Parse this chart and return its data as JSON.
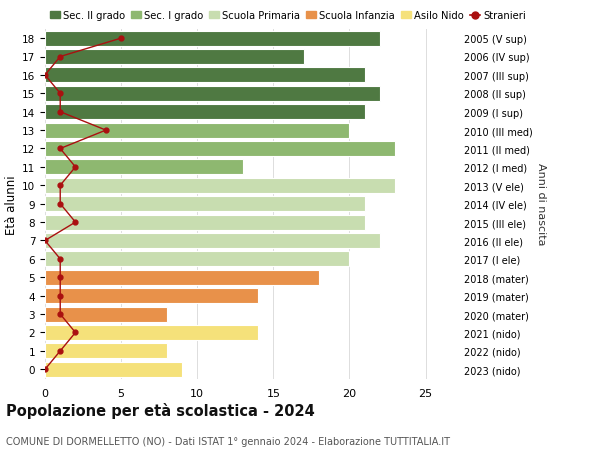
{
  "ages": [
    0,
    1,
    2,
    3,
    4,
    5,
    6,
    7,
    8,
    9,
    10,
    11,
    12,
    13,
    14,
    15,
    16,
    17,
    18
  ],
  "right_labels": [
    "2023 (nido)",
    "2022 (nido)",
    "2021 (nido)",
    "2020 (mater)",
    "2019 (mater)",
    "2018 (mater)",
    "2017 (I ele)",
    "2016 (II ele)",
    "2015 (III ele)",
    "2014 (IV ele)",
    "2013 (V ele)",
    "2012 (I med)",
    "2011 (II med)",
    "2010 (III med)",
    "2009 (I sup)",
    "2008 (II sup)",
    "2007 (III sup)",
    "2006 (IV sup)",
    "2005 (V sup)"
  ],
  "bar_values": [
    9,
    8,
    14,
    8,
    14,
    18,
    20,
    22,
    21,
    21,
    23,
    13,
    23,
    20,
    21,
    22,
    21,
    17,
    22
  ],
  "bar_colors": [
    "#f5e17a",
    "#f5e17a",
    "#f5e17a",
    "#e8914a",
    "#e8914a",
    "#e8914a",
    "#c8ddb0",
    "#c8ddb0",
    "#c8ddb0",
    "#c8ddb0",
    "#c8ddb0",
    "#8eb870",
    "#8eb870",
    "#8eb870",
    "#4f7942",
    "#4f7942",
    "#4f7942",
    "#4f7942",
    "#4f7942"
  ],
  "stranieri_values": [
    0,
    1,
    2,
    1,
    1,
    1,
    1,
    0,
    2,
    1,
    1,
    2,
    1,
    4,
    1,
    1,
    0,
    1,
    5
  ],
  "legend_labels": [
    "Sec. II grado",
    "Sec. I grado",
    "Scuola Primaria",
    "Scuola Infanzia",
    "Asilo Nido",
    "Stranieri"
  ],
  "legend_colors": [
    "#4f7942",
    "#8eb870",
    "#c8ddb0",
    "#e8914a",
    "#f5e17a",
    "#aa1010"
  ],
  "ylabel": "Età alunni",
  "right_ylabel": "Anni di nascita",
  "title": "Popolazione per età scolastica - 2024",
  "subtitle": "COMUNE DI DORMELLETTO (NO) - Dati ISTAT 1° gennaio 2024 - Elaborazione TUTTITALIA.IT",
  "xlim": [
    0,
    27
  ],
  "ylim": [
    -0.5,
    18.5
  ],
  "xticks": [
    0,
    5,
    10,
    15,
    20,
    25
  ],
  "background_color": "#ffffff",
  "grid_color": "#dddddd",
  "bar_edge_color": "#ffffff",
  "bar_height": 0.82
}
